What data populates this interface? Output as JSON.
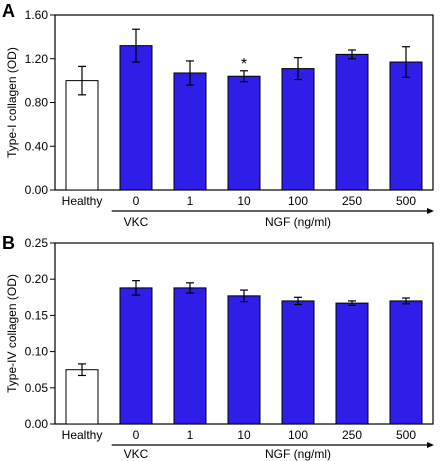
{
  "chart_data": [
    {
      "panel_label": "A",
      "type": "bar",
      "ylabel": "Type-I collagen (OD)",
      "ylim": [
        0,
        1.6
      ],
      "yticks": [
        0.0,
        0.4,
        0.8,
        1.2,
        1.6
      ],
      "ytick_labels": [
        "0.00",
        "0.40",
        "0.80",
        "1.20",
        "1.60"
      ],
      "categories": [
        "Healthy",
        "0",
        "1",
        "10",
        "100",
        "250",
        "500"
      ],
      "values": [
        1.0,
        1.32,
        1.07,
        1.04,
        1.11,
        1.24,
        1.17
      ],
      "errors": [
        0.13,
        0.15,
        0.11,
        0.05,
        0.1,
        0.04,
        0.14
      ],
      "bar_colors": [
        "#ffffff",
        "#2f1ee8",
        "#2f1ee8",
        "#2f1ee8",
        "#2f1ee8",
        "#2f1ee8",
        "#2f1ee8"
      ],
      "annotations": [
        {
          "category": "10",
          "text": "*"
        }
      ],
      "vkc_label": "VKC",
      "xlabel": "NGF (ng/ml)",
      "grid": false
    },
    {
      "panel_label": "B",
      "type": "bar",
      "ylabel": "Type-IV collagen (OD)",
      "ylim": [
        0,
        0.25
      ],
      "yticks": [
        0.0,
        0.05,
        0.1,
        0.15,
        0.2,
        0.25
      ],
      "ytick_labels": [
        "0.00",
        "0.05",
        "0.10",
        "0.15",
        "0.20",
        "0.25"
      ],
      "categories": [
        "Healthy",
        "0",
        "1",
        "10",
        "100",
        "250",
        "500"
      ],
      "values": [
        0.075,
        0.188,
        0.188,
        0.177,
        0.17,
        0.167,
        0.17
      ],
      "errors": [
        0.008,
        0.01,
        0.007,
        0.008,
        0.005,
        0.003,
        0.004
      ],
      "bar_colors": [
        "#ffffff",
        "#2f1ee8",
        "#2f1ee8",
        "#2f1ee8",
        "#2f1ee8",
        "#2f1ee8",
        "#2f1ee8"
      ],
      "annotations": [],
      "vkc_label": "VKC",
      "xlabel": "NGF (ng/ml)",
      "grid": false
    }
  ]
}
